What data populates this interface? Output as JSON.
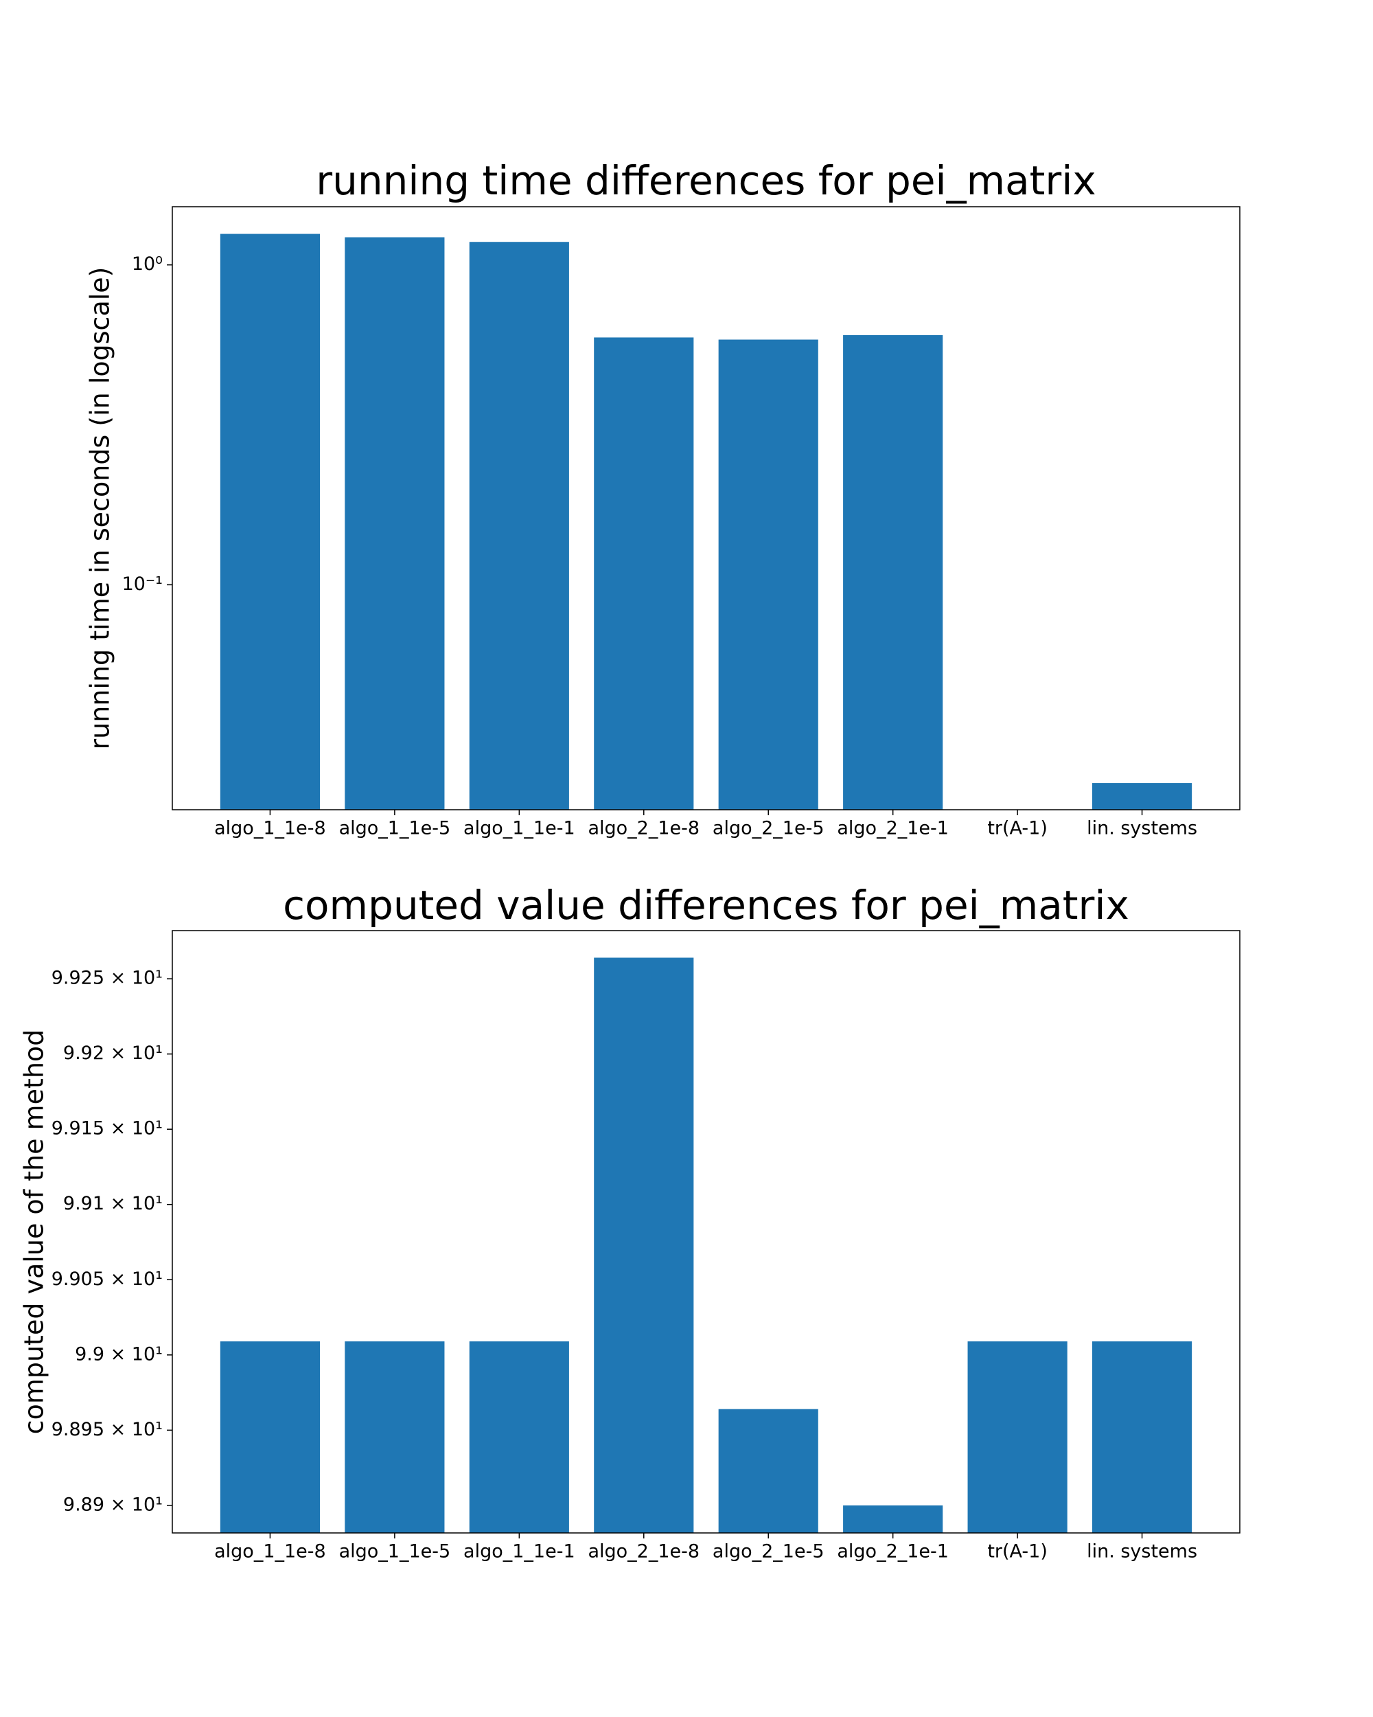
{
  "chart_data": [
    {
      "type": "bar",
      "title": "running time differences for pei_matrix",
      "ylabel": "running time in seconds (in logscale)",
      "categories": [
        "algo_1_1e-8",
        "algo_1_1e-5",
        "algo_1_1e-1",
        "algo_2_1e-8",
        "algo_2_1e-5",
        "algo_2_1e-1",
        "tr(A-1)",
        "lin. systems"
      ],
      "values": [
        1.25,
        1.22,
        1.18,
        0.593,
        0.584,
        0.603,
        null,
        0.024
      ],
      "color": "#1f77b4",
      "log_scale": true,
      "ylim": [
        0.0198,
        1.52
      ],
      "yticks": [
        {
          "value": 1,
          "label": "10⁰"
        },
        {
          "value": 0.1,
          "label": "10⁻¹"
        }
      ]
    },
    {
      "type": "bar",
      "title": "computed value differences for pei_matrix",
      "ylabel": "computed value of the method",
      "categories": [
        "algo_1_1e-8",
        "algo_1_1e-5",
        "algo_1_1e-1",
        "algo_2_1e-8",
        "algo_2_1e-5",
        "algo_2_1e-1",
        "tr(A-1)",
        "lin. systems"
      ],
      "values": [
        99.009,
        99.009,
        99.009,
        99.264,
        98.964,
        98.9,
        99.009,
        99.009
      ],
      "color": "#1f77b4",
      "log_scale": false,
      "ylim": [
        98.8817,
        99.282
      ],
      "yticks": [
        {
          "value": 98.9,
          "label": "9.89 × 10¹"
        },
        {
          "value": 98.95,
          "label": "9.895 × 10¹"
        },
        {
          "value": 99.0,
          "label": "9.9 × 10¹"
        },
        {
          "value": 99.05,
          "label": "9.905 × 10¹"
        },
        {
          "value": 99.1,
          "label": "9.91 × 10¹"
        },
        {
          "value": 99.15,
          "label": "9.915 × 10¹"
        },
        {
          "value": 99.2,
          "label": "9.92 × 10¹"
        },
        {
          "value": 99.25,
          "label": "9.925 × 10¹"
        }
      ]
    }
  ]
}
